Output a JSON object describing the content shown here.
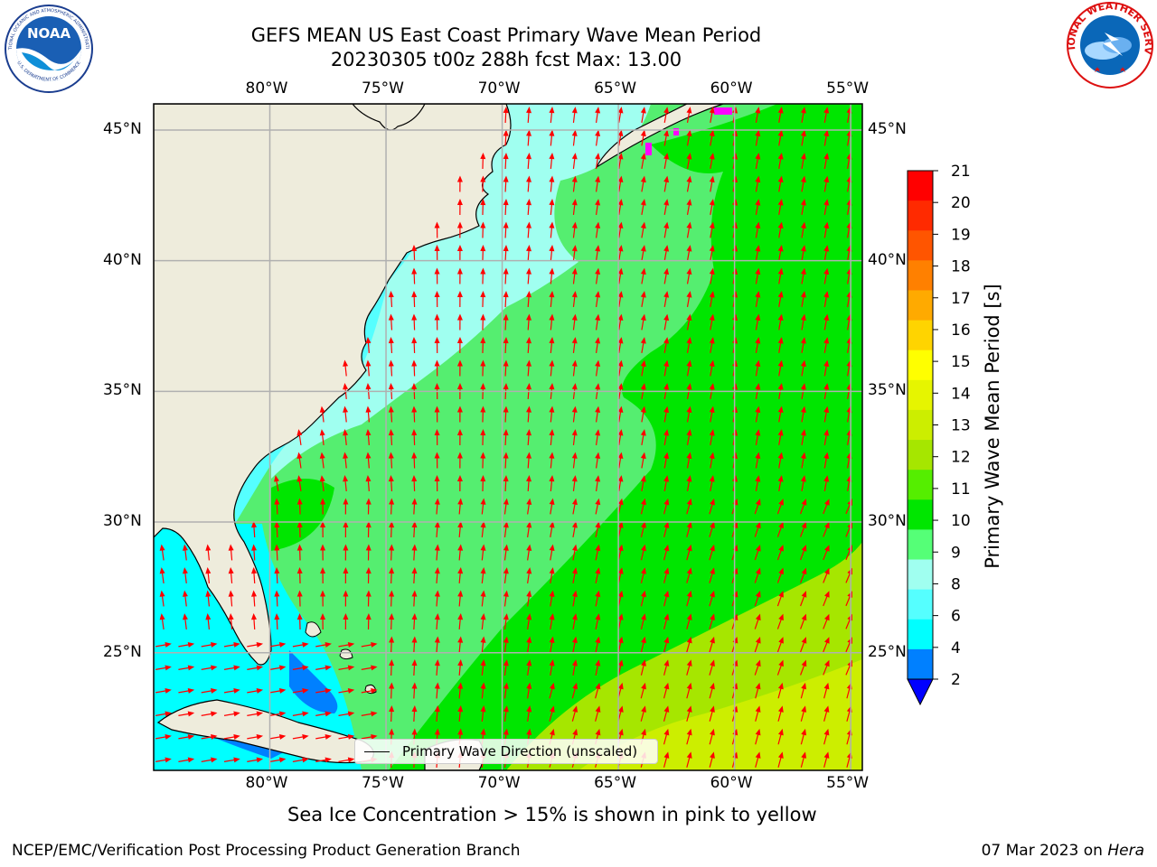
{
  "title": {
    "line1": "GEFS MEAN US East Coast Primary Wave Mean Period",
    "line2": "20230305 t00z 288h fcst   Max: 13.00"
  },
  "logos": {
    "left": "noaa-logo",
    "left_text": "NOAA",
    "left_ring_top": "NATIONAL OCEANIC AND ATMOSPHERIC ADMINISTRATION",
    "left_ring_bottom": "U.S. DEPARTMENT OF COMMERCE",
    "right": "nws-logo",
    "right_ring": "NATIONAL WEATHER SERVICE"
  },
  "map": {
    "lon_labels": [
      "80°W",
      "75°W",
      "70°W",
      "65°W",
      "60°W",
      "55°W"
    ],
    "lat_labels": [
      "45°N",
      "40°N",
      "35°N",
      "30°N",
      "25°N"
    ],
    "lon_range": [
      -85,
      -54.5
    ],
    "lat_range": [
      20.5,
      46
    ],
    "max_value": 13.0,
    "colors": {
      "land": "#eeecdc",
      "coast": "#000000",
      "grid": "#b0b0b0",
      "arrow": "#ff0000",
      "sea_ice": "#ff00ff"
    },
    "legend_label": "Primary Wave Direction (unscaled)"
  },
  "colorbar": {
    "label": "Primary Wave Mean Period [s]",
    "ticks": [
      "21",
      "20",
      "19",
      "18",
      "17",
      "16",
      "15",
      "14",
      "13",
      "12",
      "11",
      "10",
      "9",
      "8",
      "6",
      "4",
      "2"
    ],
    "colors": [
      "#ff0000",
      "#ff2a00",
      "#ff5500",
      "#ff8000",
      "#ffaa00",
      "#ffd400",
      "#ffff00",
      "#e6f500",
      "#ccee00",
      "#a6e600",
      "#55ee00",
      "#00e600",
      "#55ff77",
      "#a0fff0",
      "#55ffff",
      "#00ffff",
      "#0080ff"
    ],
    "extend_color": "#0000ff"
  },
  "footer": {
    "sea_ice_note": "Sea Ice Concentration > 15% is shown in pink to yellow",
    "credit": "NCEP/EMC/Verification Post Processing Product Generation Branch",
    "date": "07 Mar 2023 on ",
    "machine": "Hera"
  }
}
